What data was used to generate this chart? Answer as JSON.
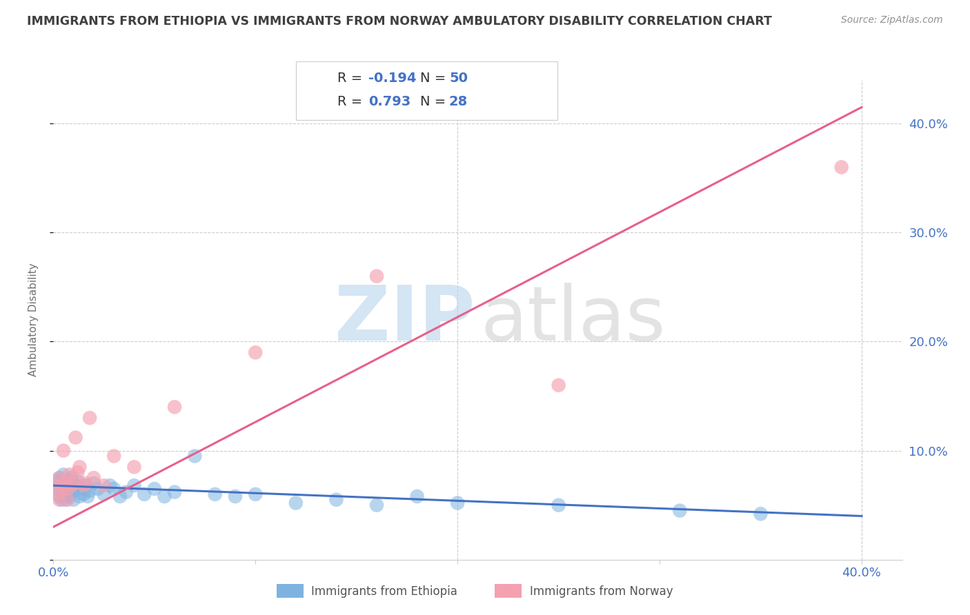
{
  "title": "IMMIGRANTS FROM ETHIOPIA VS IMMIGRANTS FROM NORWAY AMBULATORY DISABILITY CORRELATION CHART",
  "source": "Source: ZipAtlas.com",
  "ylabel": "Ambulatory Disability",
  "xlim": [
    0.0,
    0.42
  ],
  "ylim": [
    0.0,
    0.44
  ],
  "ethiopia_color": "#7eb3e0",
  "norway_color": "#f4a0b0",
  "ethiopia_line_color": "#4472c4",
  "norway_line_color": "#e8608a",
  "R_ethiopia": -0.194,
  "N_ethiopia": 50,
  "R_norway": 0.793,
  "N_norway": 28,
  "legend_color": "#4472c4",
  "watermark_zip_color": "#b8d4ee",
  "watermark_atlas_color": "#c8c8c8",
  "background_color": "#ffffff",
  "grid_color": "#cccccc",
  "title_color": "#404040",
  "axis_label_color": "#4472c4",
  "ethiopia_x": [
    0.001,
    0.002,
    0.002,
    0.003,
    0.003,
    0.004,
    0.004,
    0.005,
    0.005,
    0.006,
    0.006,
    0.007,
    0.007,
    0.008,
    0.008,
    0.009,
    0.01,
    0.01,
    0.011,
    0.012,
    0.013,
    0.014,
    0.015,
    0.016,
    0.017,
    0.018,
    0.02,
    0.022,
    0.025,
    0.028,
    0.03,
    0.033,
    0.036,
    0.04,
    0.045,
    0.05,
    0.055,
    0.06,
    0.07,
    0.08,
    0.09,
    0.1,
    0.12,
    0.14,
    0.16,
    0.18,
    0.2,
    0.25,
    0.31,
    0.35
  ],
  "ethiopia_y": [
    0.068,
    0.072,
    0.065,
    0.075,
    0.058,
    0.07,
    0.055,
    0.062,
    0.078,
    0.065,
    0.055,
    0.072,
    0.06,
    0.068,
    0.058,
    0.075,
    0.063,
    0.055,
    0.068,
    0.072,
    0.058,
    0.065,
    0.06,
    0.068,
    0.058,
    0.063,
    0.07,
    0.065,
    0.06,
    0.068,
    0.065,
    0.058,
    0.062,
    0.068,
    0.06,
    0.065,
    0.058,
    0.062,
    0.095,
    0.06,
    0.058,
    0.06,
    0.052,
    0.055,
    0.05,
    0.058,
    0.052,
    0.05,
    0.045,
    0.042
  ],
  "norway_x": [
    0.001,
    0.002,
    0.003,
    0.003,
    0.004,
    0.005,
    0.005,
    0.006,
    0.007,
    0.007,
    0.008,
    0.009,
    0.01,
    0.011,
    0.012,
    0.013,
    0.015,
    0.016,
    0.018,
    0.02,
    0.025,
    0.03,
    0.04,
    0.06,
    0.1,
    0.16,
    0.25,
    0.39
  ],
  "norway_y": [
    0.068,
    0.06,
    0.075,
    0.055,
    0.068,
    0.1,
    0.065,
    0.072,
    0.065,
    0.055,
    0.078,
    0.068,
    0.07,
    0.112,
    0.08,
    0.085,
    0.068,
    0.07,
    0.13,
    0.075,
    0.068,
    0.095,
    0.085,
    0.14,
    0.19,
    0.26,
    0.16,
    0.36
  ],
  "eth_line_x0": 0.0,
  "eth_line_x1": 0.4,
  "eth_line_y0": 0.068,
  "eth_line_y1": 0.04,
  "nor_line_x0": 0.0,
  "nor_line_x1": 0.4,
  "nor_line_y0": 0.03,
  "nor_line_y1": 0.415
}
